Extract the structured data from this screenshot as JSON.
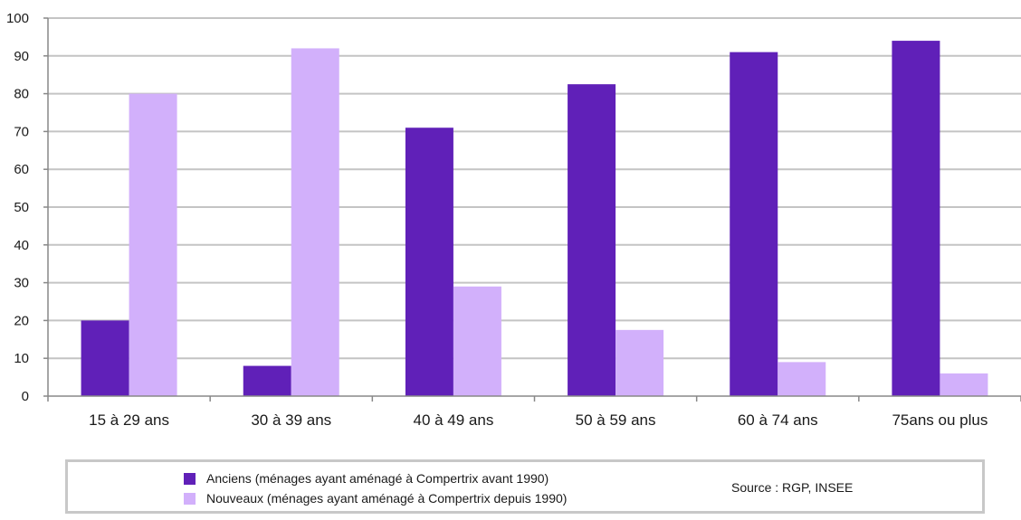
{
  "chart_data": {
    "type": "bar",
    "categories": [
      "15 à 29 ans",
      "30 à 39 ans",
      "40 à 49 ans",
      "50 à 59 ans",
      "60 à 74 ans",
      "75ans ou plus"
    ],
    "series": [
      {
        "name": "Anciens (ménages ayant aménagé à Compertrix avant 1990)",
        "values": [
          20,
          8,
          71,
          82.5,
          91,
          94
        ],
        "color": "#6020b8"
      },
      {
        "name": "Nouveaux (ménages ayant aménagé à Compertrix depuis 1990)",
        "values": [
          80,
          92,
          29,
          17.5,
          9,
          6
        ],
        "color": "#d2b0fb"
      }
    ],
    "yticks": [
      0,
      10,
      20,
      30,
      40,
      50,
      60,
      70,
      80,
      90,
      100
    ],
    "ylim": [
      0,
      100
    ],
    "grid": true,
    "legend_position": "bottom",
    "source": "Source : RGP, INSEE",
    "title": "",
    "xlabel": "",
    "ylabel": ""
  }
}
